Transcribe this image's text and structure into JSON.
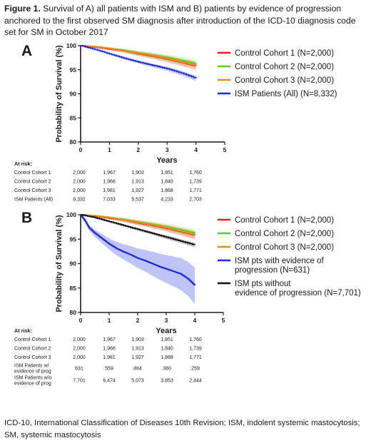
{
  "caption": {
    "label": "Figure 1.",
    "text": "Survival of A) all patients with ISM and B) patients by evidence of progression anchored to the first observed SM diagnosis after introduction of the ICD-10 diagnosis code set for SM in October 2017"
  },
  "footnote": {
    "line1": "ICD-10, International Classification of Diseases 10th Revision; ISM, indolent systemic mastocytosis;",
    "line2": "SM, systemic mastocytosis"
  },
  "colors": {
    "control1": "#d9261c",
    "control2": "#55d125",
    "control3": "#f0891e",
    "ism": "#1f2bd4",
    "ism_band": "#aab0f5",
    "without": "#111111"
  },
  "chart_data": [
    {
      "type": "line",
      "panel_label": "A",
      "xlabel": "Years",
      "ylabel": "Probability of Survival (%)",
      "xlim": [
        0,
        5
      ],
      "ylim": [
        80,
        100
      ],
      "xticks": [
        "0",
        "1",
        "2",
        "3",
        "4",
        "5"
      ],
      "yticks": [
        "80",
        "85",
        "90",
        "95",
        "100"
      ],
      "legend_position": "right",
      "series": [
        {
          "name": "Control Cohort 1",
          "legend_n": "(N=2,000)",
          "color": "#d9261c",
          "band": true,
          "x": [
            0,
            0.5,
            1,
            1.5,
            2,
            2.5,
            3,
            3.5,
            4
          ],
          "y": [
            100,
            99.7,
            99.3,
            98.9,
            98.3,
            97.8,
            97.2,
            96.5,
            95.8
          ]
        },
        {
          "name": "Control Cohort 2",
          "legend_n": "(N=2,000)",
          "color": "#55d125",
          "band": true,
          "x": [
            0,
            0.5,
            1,
            1.5,
            2,
            2.5,
            3,
            3.5,
            4
          ],
          "y": [
            100,
            99.8,
            99.4,
            99.0,
            98.5,
            98.0,
            97.5,
            96.9,
            96.2
          ]
        },
        {
          "name": "Control Cohort 3",
          "legend_n": "(N=2,000)",
          "color": "#f0891e",
          "band": true,
          "x": [
            0,
            0.5,
            1,
            1.5,
            2,
            2.5,
            3,
            3.5,
            4
          ],
          "y": [
            100,
            99.8,
            99.4,
            98.9,
            98.4,
            97.9,
            97.3,
            96.6,
            95.9
          ]
        },
        {
          "name": "ISM Patients (All)",
          "legend_n": "(N=8,332)",
          "color": "#1f2bd4",
          "band": true,
          "x": [
            0,
            0.5,
            1,
            1.5,
            2,
            2.5,
            3,
            3.5,
            4
          ],
          "y": [
            100,
            99.2,
            98.3,
            97.4,
            96.6,
            95.9,
            95.2,
            94.3,
            93.2
          ]
        }
      ],
      "risk_table": {
        "header": "At risk:",
        "rows": [
          {
            "label": "Control Cohort 1",
            "values": [
              "2,000",
              "1,967",
              "1,903",
              "1,851",
              "1,760"
            ]
          },
          {
            "label": "Control Cohort 2",
            "values": [
              "2,000",
              "1,966",
              "1,913",
              "1,840",
              "1,739"
            ]
          },
          {
            "label": "Control Cohort 3",
            "values": [
              "2,000",
              "1,981",
              "1,927",
              "1,868",
              "1,771"
            ]
          },
          {
            "label": "ISM Patients (All)",
            "values": [
              "8,332",
              "7,033",
              "5,537",
              "4,233",
              "2,703"
            ]
          }
        ]
      }
    },
    {
      "type": "line",
      "panel_label": "B",
      "xlabel": "Years",
      "ylabel": "Probability of Survival (%)",
      "xlim": [
        0,
        5
      ],
      "ylim": [
        80,
        100
      ],
      "xticks": [
        "0",
        "1",
        "2",
        "3",
        "4",
        "5"
      ],
      "yticks": [
        "80",
        "85",
        "90",
        "95",
        "100"
      ],
      "legend_position": "right",
      "series": [
        {
          "name": "Control Cohort 1",
          "legend_n": "(N=2,000)",
          "color": "#d9261c",
          "band": true,
          "x": [
            0,
            0.5,
            1,
            1.5,
            2,
            2.5,
            3,
            3.5,
            4
          ],
          "y": [
            100,
            99.7,
            99.3,
            98.9,
            98.3,
            97.8,
            97.2,
            96.5,
            95.8
          ]
        },
        {
          "name": "Control Cohort 2",
          "legend_n": "(N=2,000)",
          "color": "#55d125",
          "band": true,
          "x": [
            0,
            0.5,
            1,
            1.5,
            2,
            2.5,
            3,
            3.5,
            4
          ],
          "y": [
            100,
            99.8,
            99.4,
            99.0,
            98.5,
            98.0,
            97.5,
            96.9,
            96.2
          ]
        },
        {
          "name": "Control Cohort 3",
          "legend_n": "(N=2,000)",
          "color": "#f0891e",
          "band": true,
          "x": [
            0,
            0.5,
            1,
            1.5,
            2,
            2.5,
            3,
            3.5,
            4
          ],
          "y": [
            100,
            99.8,
            99.4,
            98.9,
            98.4,
            97.9,
            97.3,
            96.6,
            95.9
          ]
        },
        {
          "name": "ISM pts with evidence of progression",
          "legend_n": "(N=631)",
          "color": "#1f2bd4",
          "band": true,
          "x": [
            0,
            0.15,
            0.3,
            0.5,
            0.75,
            1,
            1.25,
            1.5,
            1.75,
            2,
            2.25,
            2.5,
            2.75,
            3,
            3.25,
            3.5,
            3.75,
            4
          ],
          "y": [
            100,
            98.8,
            97.3,
            96.2,
            95.1,
            94.0,
            93.1,
            92.4,
            91.8,
            91.1,
            90.6,
            90.0,
            89.4,
            88.9,
            88.4,
            87.9,
            86.9,
            85.5
          ]
        },
        {
          "name": "ISM pts without evidence of progression",
          "legend_n": "(N=7,701)",
          "color": "#111111",
          "band": true,
          "x": [
            0,
            0.5,
            1,
            1.5,
            2,
            2.5,
            3,
            3.5,
            4
          ],
          "y": [
            100,
            99.4,
            98.6,
            97.8,
            97.0,
            96.2,
            95.4,
            94.6,
            93.8
          ]
        }
      ],
      "risk_table": {
        "header": "At risk:",
        "rows": [
          {
            "label": "Control Cohort 1",
            "values": [
              "2,000",
              "1,967",
              "1,903",
              "1,851",
              "1,760"
            ]
          },
          {
            "label": "Control Cohort 2",
            "values": [
              "2,000",
              "1,966",
              "1,913",
              "1,840",
              "1,739"
            ]
          },
          {
            "label": "Control Cohort 3",
            "values": [
              "2,000",
              "1,981",
              "1,927",
              "1,868",
              "1,771"
            ]
          },
          {
            "label": "ISM Patients w/ evidence of prog",
            "values": [
              "631",
              "559",
              "464",
              "380",
              "259"
            ]
          },
          {
            "label": "ISM Patients w/o evidence of prog",
            "values": [
              "7,701",
              "6,474",
              "5,073",
              "3,853",
              "2,444"
            ]
          }
        ]
      }
    }
  ]
}
